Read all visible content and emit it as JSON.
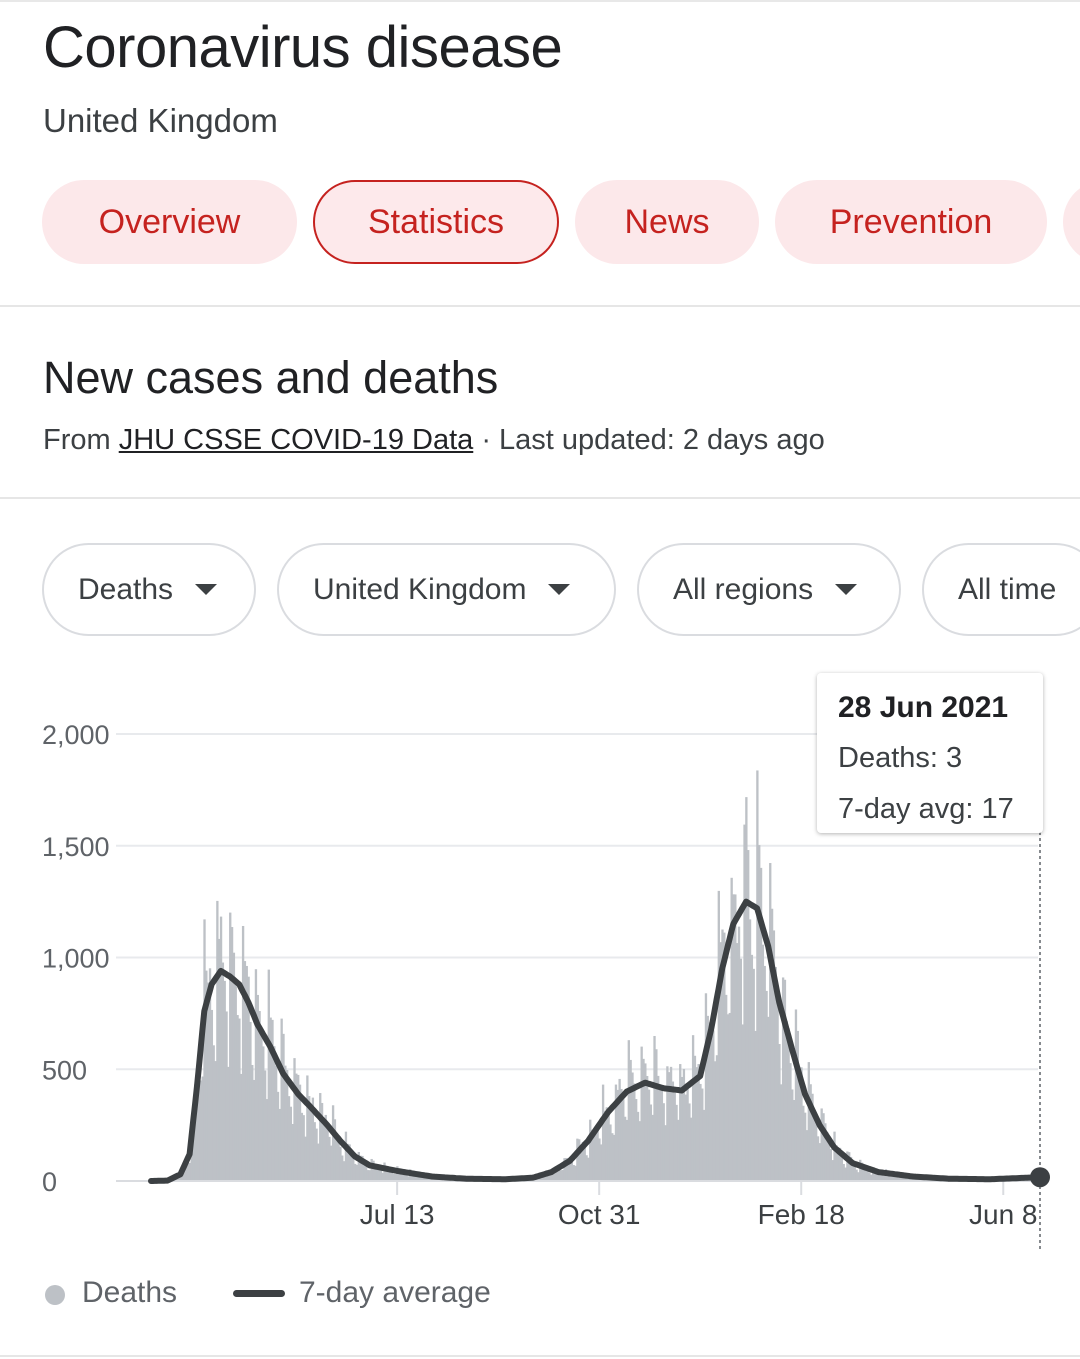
{
  "header": {
    "title": "Coronavirus disease",
    "subtitle": "United Kingdom"
  },
  "tabs": [
    {
      "label": "Overview",
      "active": false
    },
    {
      "label": "Statistics",
      "active": true
    },
    {
      "label": "News",
      "active": false
    },
    {
      "label": "Prevention",
      "active": false
    }
  ],
  "section": {
    "title": "New cases and deaths",
    "source_prefix": "From ",
    "source_link": "JHU CSSE COVID-19 Data",
    "source_suffix": " · Last updated: 2 days ago"
  },
  "filters": [
    {
      "label": "Deaths",
      "has_dropdown": true
    },
    {
      "label": "United Kingdom",
      "has_dropdown": true
    },
    {
      "label": "All regions",
      "has_dropdown": true
    },
    {
      "label": "All time",
      "has_dropdown": false
    }
  ],
  "tooltip": {
    "date": "28 Jun 2021",
    "deaths_line": "Deaths: 3",
    "avg_line": "7-day avg: 17"
  },
  "legend": {
    "series1": "Deaths",
    "series2": "7-day average"
  },
  "colors": {
    "accent": "#c5221f",
    "bars": "#bdc1c6",
    "avg_line": "#3c4043",
    "grid": "#e8eaed"
  },
  "chart_data": {
    "type": "bar",
    "series": [
      {
        "name": "Deaths",
        "style": "bars"
      },
      {
        "name": "7-day average",
        "style": "line"
      }
    ],
    "x_start": "2020-03-01",
    "x_end": "2021-06-28",
    "xticks": [
      {
        "date": "2020-07-13",
        "label": "Jul 13"
      },
      {
        "date": "2020-10-31",
        "label": "Oct 31"
      },
      {
        "date": "2021-02-18",
        "label": "Feb 18"
      },
      {
        "date": "2021-06-08",
        "label": "Jun 8"
      }
    ],
    "yticks": [
      0,
      500,
      1000,
      1500,
      2000
    ],
    "ytick_labels": [
      "0",
      "500",
      "1,000",
      "1,500",
      "2,000"
    ],
    "ylim": [
      0,
      2000
    ],
    "grid": true,
    "avg_keypoints": [
      [
        "2020-03-01",
        0
      ],
      [
        "2020-03-10",
        2
      ],
      [
        "2020-03-17",
        30
      ],
      [
        "2020-03-22",
        120
      ],
      [
        "2020-03-26",
        420
      ],
      [
        "2020-03-30",
        760
      ],
      [
        "2020-04-03",
        880
      ],
      [
        "2020-04-08",
        940
      ],
      [
        "2020-04-13",
        915
      ],
      [
        "2020-04-18",
        880
      ],
      [
        "2020-04-23",
        800
      ],
      [
        "2020-04-28",
        700
      ],
      [
        "2020-05-05",
        600
      ],
      [
        "2020-05-12",
        480
      ],
      [
        "2020-05-20",
        390
      ],
      [
        "2020-05-27",
        330
      ],
      [
        "2020-06-05",
        250
      ],
      [
        "2020-06-12",
        180
      ],
      [
        "2020-06-20",
        110
      ],
      [
        "2020-06-28",
        70
      ],
      [
        "2020-07-13",
        45
      ],
      [
        "2020-08-01",
        20
      ],
      [
        "2020-08-20",
        10
      ],
      [
        "2020-09-10",
        8
      ],
      [
        "2020-09-25",
        15
      ],
      [
        "2020-10-05",
        40
      ],
      [
        "2020-10-15",
        90
      ],
      [
        "2020-10-25",
        180
      ],
      [
        "2020-11-05",
        310
      ],
      [
        "2020-11-15",
        400
      ],
      [
        "2020-11-25",
        440
      ],
      [
        "2020-12-05",
        415
      ],
      [
        "2020-12-15",
        405
      ],
      [
        "2020-12-25",
        470
      ],
      [
        "2020-12-31",
        680
      ],
      [
        "2021-01-06",
        950
      ],
      [
        "2021-01-12",
        1150
      ],
      [
        "2021-01-19",
        1250
      ],
      [
        "2021-01-25",
        1220
      ],
      [
        "2021-01-31",
        1050
      ],
      [
        "2021-02-06",
        800
      ],
      [
        "2021-02-13",
        590
      ],
      [
        "2021-02-20",
        390
      ],
      [
        "2021-02-28",
        250
      ],
      [
        "2021-03-08",
        150
      ],
      [
        "2021-03-18",
        80
      ],
      [
        "2021-04-01",
        40
      ],
      [
        "2021-04-20",
        20
      ],
      [
        "2021-05-10",
        10
      ],
      [
        "2021-06-01",
        8
      ],
      [
        "2021-06-28",
        17
      ]
    ],
    "selected_point": {
      "date": "2021-06-28",
      "deaths": 3,
      "avg": 17
    }
  }
}
